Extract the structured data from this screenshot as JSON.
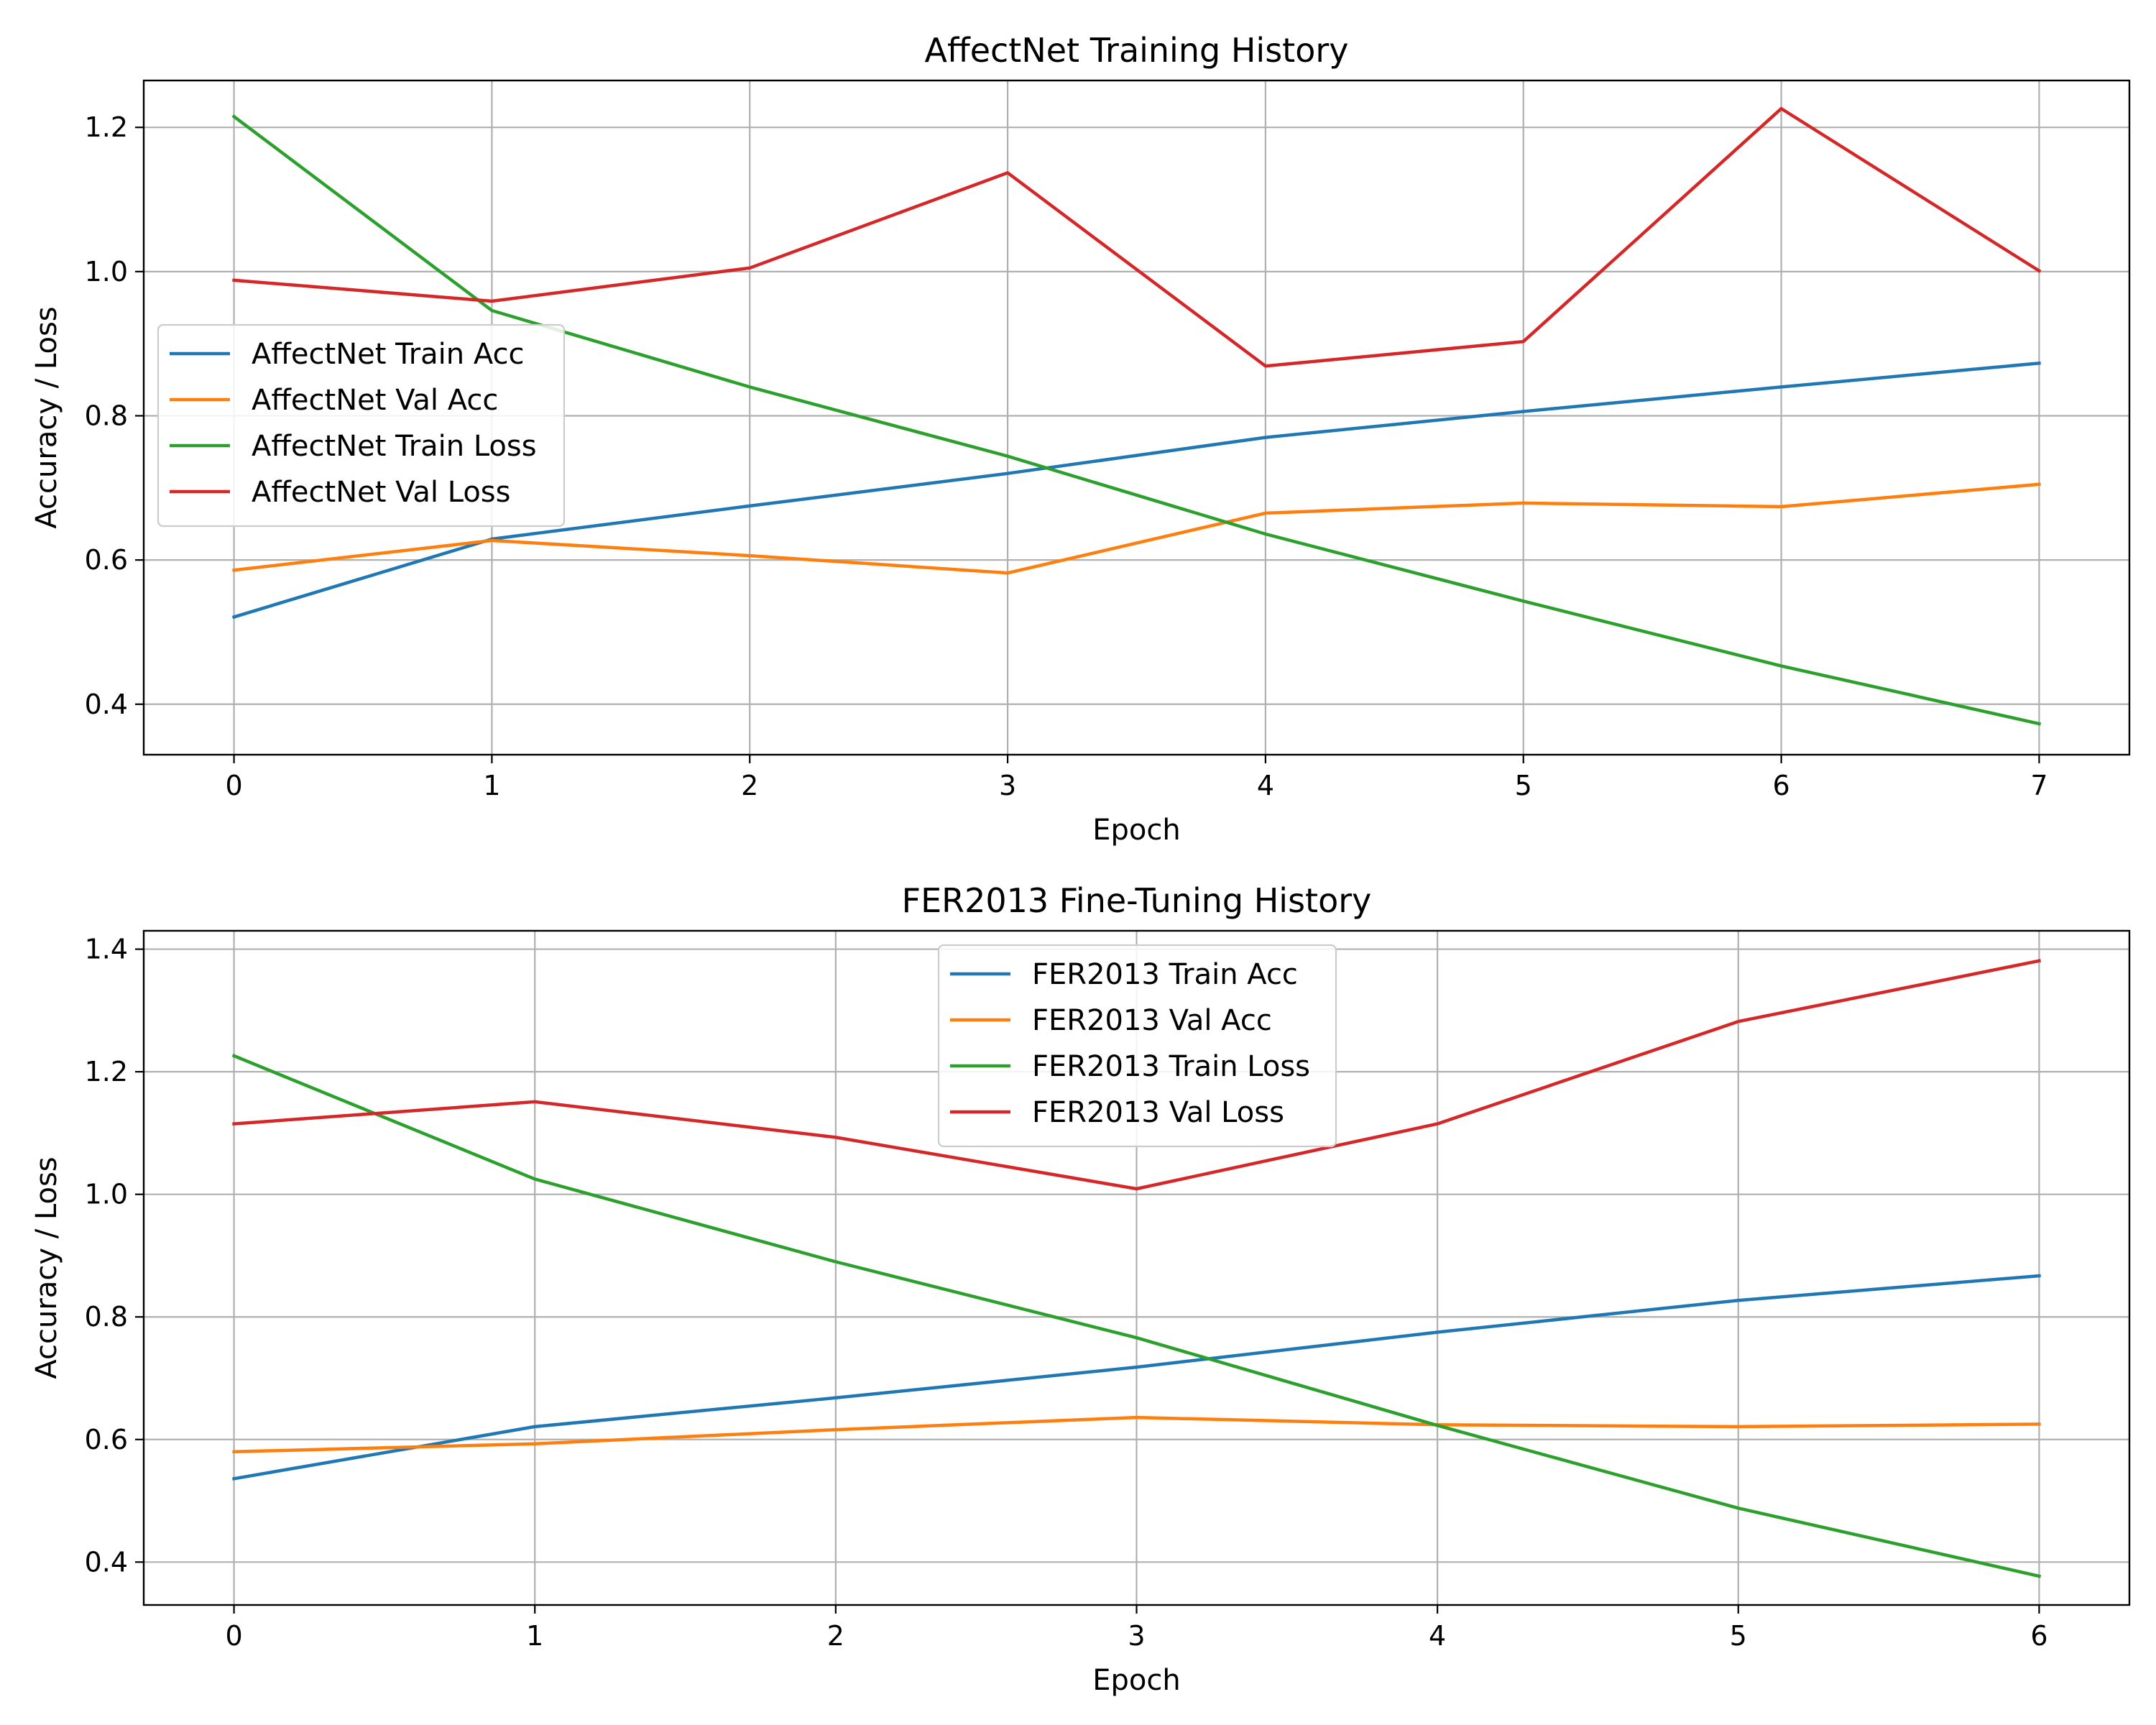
{
  "chart_data": [
    {
      "type": "line",
      "title": "AffectNet Training History",
      "xlabel": "Epoch",
      "ylabel": "Accuracy / Loss",
      "x": [
        0,
        1,
        2,
        3,
        4,
        5,
        6,
        7
      ],
      "xticks": [
        0,
        1,
        2,
        3,
        4,
        5,
        6,
        7
      ],
      "yticks": [
        0.4,
        0.6,
        0.8,
        1.0,
        1.2
      ],
      "ytick_labels": [
        "0.4",
        "0.6",
        "0.8",
        "1.0",
        "1.2"
      ],
      "xlim": [
        -0.35,
        7.35
      ],
      "ylim": [
        0.33,
        1.265
      ],
      "grid": true,
      "legend_position": "center-left",
      "series": [
        {
          "name": "AffectNet Train Acc",
          "color": "#1f77b4",
          "values": [
            0.521,
            0.629,
            0.675,
            0.72,
            0.77,
            0.806,
            0.84,
            0.873
          ]
        },
        {
          "name": "AffectNet Val Acc",
          "color": "#ff7f0e",
          "values": [
            0.586,
            0.627,
            0.606,
            0.582,
            0.665,
            0.679,
            0.674,
            0.705
          ]
        },
        {
          "name": "AffectNet Train Loss",
          "color": "#2ca02c",
          "values": [
            1.215,
            0.946,
            0.84,
            0.744,
            0.636,
            0.543,
            0.453,
            0.373
          ]
        },
        {
          "name": "AffectNet Val Loss",
          "color": "#d62728",
          "values": [
            0.988,
            0.959,
            1.005,
            1.137,
            0.869,
            0.903,
            1.226,
            1.001
          ]
        }
      ]
    },
    {
      "type": "line",
      "title": "FER2013 Fine-Tuning History",
      "xlabel": "Epoch",
      "ylabel": "Accuracy / Loss",
      "x": [
        0,
        1,
        2,
        3,
        4,
        5,
        6
      ],
      "xticks": [
        0,
        1,
        2,
        3,
        4,
        5,
        6
      ],
      "yticks": [
        0.4,
        0.6,
        0.8,
        1.0,
        1.2,
        1.4
      ],
      "ytick_labels": [
        "0.4",
        "0.6",
        "0.8",
        "1.0",
        "1.2",
        "1.4"
      ],
      "xlim": [
        -0.3,
        6.3
      ],
      "ylim": [
        0.33,
        1.43
      ],
      "grid": true,
      "legend_position": "upper-center",
      "series": [
        {
          "name": "FER2013 Train Acc",
          "color": "#1f77b4",
          "values": [
            0.536,
            0.621,
            0.668,
            0.718,
            0.775,
            0.827,
            0.867
          ]
        },
        {
          "name": "FER2013 Val Acc",
          "color": "#ff7f0e",
          "values": [
            0.58,
            0.593,
            0.616,
            0.636,
            0.624,
            0.621,
            0.625
          ]
        },
        {
          "name": "FER2013 Train Loss",
          "color": "#2ca02c",
          "values": [
            1.226,
            1.025,
            0.89,
            0.766,
            0.623,
            0.488,
            0.377
          ]
        },
        {
          "name": "FER2013 Val Loss",
          "color": "#d62728",
          "values": [
            1.115,
            1.151,
            1.093,
            1.009,
            1.115,
            1.282,
            1.381
          ]
        }
      ]
    }
  ]
}
